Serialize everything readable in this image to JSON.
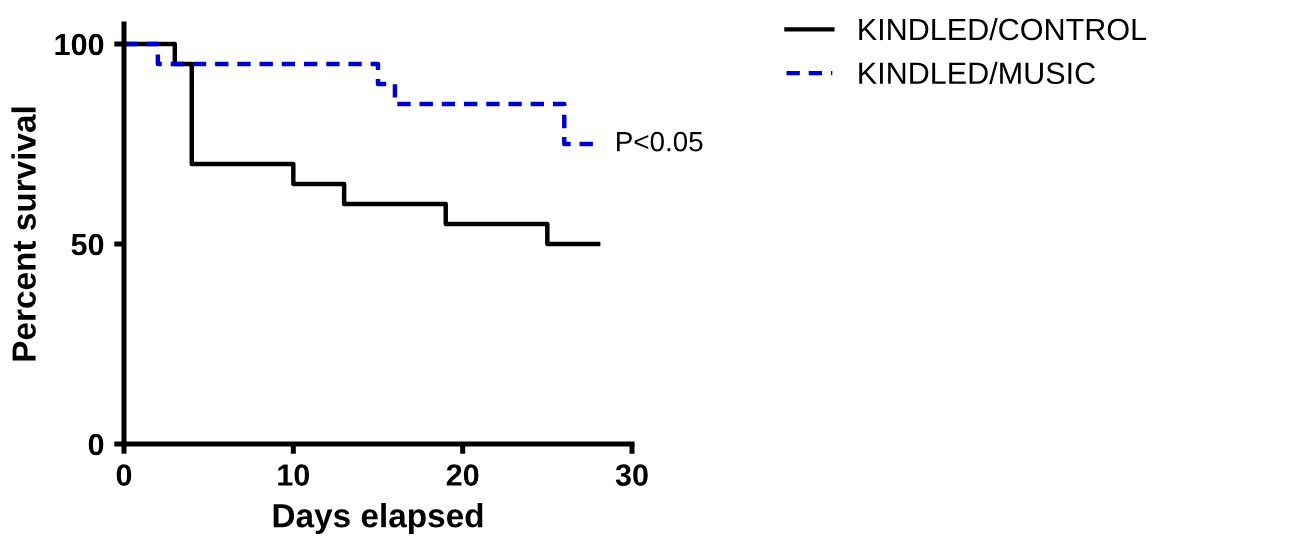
{
  "chart_data": {
    "type": "step",
    "xlabel": "Days elapsed",
    "ylabel": "Percent survival",
    "xlim": [
      0,
      30
    ],
    "ylim": [
      0,
      105
    ],
    "xticks": [
      0,
      10,
      20,
      30
    ],
    "yticks": [
      0,
      50,
      100
    ],
    "grid": false,
    "legend": "top right",
    "marker": "none",
    "series": [
      {
        "name": "KINDLED/CONTROL",
        "color": "#000000",
        "line_style": "solid",
        "x": [
          0,
          3,
          4,
          10,
          13,
          19,
          25,
          28
        ],
        "values": [
          100,
          95,
          70,
          65,
          60,
          55,
          50,
          50
        ]
      },
      {
        "name": "KINDLED/MUSIC",
        "color": "#0000cc",
        "line_style": "dashed",
        "x": [
          0,
          2,
          15,
          16,
          26,
          28
        ],
        "values": [
          100,
          95,
          90,
          85,
          75,
          75
        ]
      }
    ],
    "annotations": [
      {
        "text": "P<0.05",
        "x": 28,
        "y": 75
      }
    ]
  }
}
